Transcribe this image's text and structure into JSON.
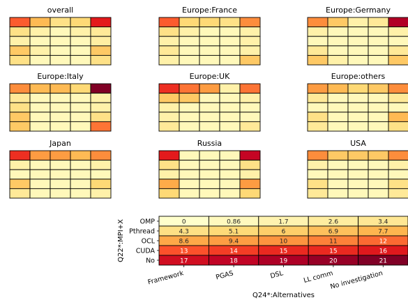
{
  "colors": {
    "scale": [
      "#ffffcc",
      "#ffeda0",
      "#fed976",
      "#feb24c",
      "#fd8d3c",
      "#fc4e2a",
      "#e31a1c",
      "#bd0026",
      "#800026"
    ],
    "grid_line": "#000000",
    "label_light": "#ffffff",
    "label_dark": "#262626"
  },
  "chart_data": [
    {
      "type": "heatmap",
      "title": "overall",
      "rows": 5,
      "cols": 5,
      "values": [
        [
          0.6,
          0.35,
          0.2,
          0.25,
          0.75
        ],
        [
          0.2,
          0.1,
          0.05,
          0.1,
          0.15
        ],
        [
          0.1,
          0.05,
          0.05,
          0.05,
          0.12
        ],
        [
          0.3,
          0.1,
          0.05,
          0.05,
          0.3
        ],
        [
          0.2,
          0.05,
          0.05,
          0.05,
          0.2
        ]
      ]
    },
    {
      "type": "heatmap",
      "title": "Europe:France",
      "rows": 5,
      "cols": 5,
      "values": [
        [
          0.6,
          0.25,
          0.25,
          0.2,
          0.5
        ],
        [
          0.2,
          0.1,
          0.05,
          0.05,
          0.1
        ],
        [
          0.1,
          0.05,
          0.05,
          0.05,
          0.1
        ],
        [
          0.15,
          0.05,
          0.05,
          0.05,
          0.1
        ],
        [
          0.1,
          0.05,
          0.05,
          0.05,
          0.3
        ]
      ]
    },
    {
      "type": "heatmap",
      "title": "Europe:Germany",
      "rows": 5,
      "cols": 5,
      "values": [
        [
          0.5,
          0.3,
          0.1,
          0.15,
          0.9
        ],
        [
          0.1,
          0.05,
          0.05,
          0.05,
          0.1
        ],
        [
          0.05,
          0.05,
          0.05,
          0.05,
          0.05
        ],
        [
          0.15,
          0.05,
          0.05,
          0.05,
          0.15
        ],
        [
          0.3,
          0.1,
          0.05,
          0.05,
          0.3
        ]
      ]
    },
    {
      "type": "heatmap",
      "title": "Europe:Italy",
      "rows": 5,
      "cols": 5,
      "values": [
        [
          0.5,
          0.35,
          0.35,
          0.25,
          1.0
        ],
        [
          0.15,
          0.05,
          0.05,
          0.05,
          0.1
        ],
        [
          0.2,
          0.05,
          0.05,
          0.05,
          0.1
        ],
        [
          0.3,
          0.05,
          0.05,
          0.05,
          0.2
        ],
        [
          0.3,
          0.05,
          0.05,
          0.05,
          0.55
        ]
      ]
    },
    {
      "type": "heatmap",
      "title": "Europe:UK",
      "rows": 5,
      "cols": 5,
      "values": [
        [
          0.7,
          0.55,
          0.45,
          0.1,
          0.55
        ],
        [
          0.3,
          0.3,
          0.05,
          0.05,
          0.1
        ],
        [
          0.1,
          0.05,
          0.05,
          0.05,
          0.05
        ],
        [
          0.1,
          0.05,
          0.05,
          0.05,
          0.05
        ],
        [
          0.15,
          0.05,
          0.05,
          0.05,
          0.15
        ]
      ]
    },
    {
      "type": "heatmap",
      "title": "Europe:others",
      "rows": 5,
      "cols": 5,
      "values": [
        [
          0.45,
          0.35,
          0.25,
          0.3,
          0.5
        ],
        [
          0.15,
          0.05,
          0.05,
          0.05,
          0.15
        ],
        [
          0.05,
          0.05,
          0.05,
          0.05,
          0.05
        ],
        [
          0.2,
          0.05,
          0.05,
          0.05,
          0.35
        ],
        [
          0.15,
          0.05,
          0.05,
          0.05,
          0.2
        ]
      ]
    },
    {
      "type": "heatmap",
      "title": "Japan",
      "rows": 5,
      "cols": 5,
      "values": [
        [
          0.7,
          0.45,
          0.45,
          0.35,
          0.5
        ],
        [
          0.1,
          0.05,
          0.05,
          0.05,
          0.1
        ],
        [
          0.05,
          0.05,
          0.05,
          0.05,
          0.05
        ],
        [
          0.3,
          0.05,
          0.05,
          0.05,
          0.25
        ],
        [
          0.15,
          0.05,
          0.05,
          0.05,
          0.1
        ]
      ]
    },
    {
      "type": "heatmap",
      "title": "Russia",
      "rows": 5,
      "cols": 5,
      "values": [
        [
          0.75,
          0.05,
          0.05,
          0.05,
          0.85
        ],
        [
          0.2,
          0.05,
          0.05,
          0.05,
          0.2
        ],
        [
          0.1,
          0.05,
          0.05,
          0.05,
          0.1
        ],
        [
          0.4,
          0.05,
          0.05,
          0.05,
          0.45
        ],
        [
          0.25,
          0.05,
          0.05,
          0.05,
          0.25
        ]
      ]
    },
    {
      "type": "heatmap",
      "title": "USA",
      "rows": 5,
      "cols": 5,
      "values": [
        [
          0.5,
          0.3,
          0.3,
          0.3,
          0.5
        ],
        [
          0.1,
          0.05,
          0.05,
          0.05,
          0.1
        ],
        [
          0.05,
          0.05,
          0.05,
          0.05,
          0.05
        ],
        [
          0.2,
          0.05,
          0.05,
          0.05,
          0.2
        ],
        [
          0.15,
          0.05,
          0.05,
          0.05,
          0.15
        ]
      ]
    },
    {
      "type": "heatmap",
      "title": "",
      "xlabel": "Q24*:Alternatives",
      "ylabel": "Q22*:MPI+X",
      "x_categories": [
        "Framework",
        "PGAS",
        "DSL",
        "LL comm",
        "No investigation"
      ],
      "y_categories": [
        "OMP",
        "Pthread",
        "OCL",
        "CUDA",
        "No"
      ],
      "values": [
        [
          0,
          0.86,
          1.7,
          2.6,
          3.4
        ],
        [
          4.3,
          5.1,
          6,
          6.9,
          7.7
        ],
        [
          8.6,
          9.4,
          10,
          11,
          12
        ],
        [
          13,
          14,
          15,
          15,
          16
        ],
        [
          17,
          18,
          19,
          20,
          21
        ]
      ],
      "value_labels": [
        [
          "0",
          "0.86",
          "1.7",
          "2.6",
          "3.4"
        ],
        [
          "4.3",
          "5.1",
          "6",
          "6.9",
          "7.7"
        ],
        [
          "8.6",
          "9.4",
          "10",
          "11",
          "12"
        ],
        [
          "13",
          "14",
          "15",
          "15",
          "16"
        ],
        [
          "17",
          "18",
          "19",
          "20",
          "21"
        ]
      ],
      "vmin": 0,
      "vmax": 21
    }
  ]
}
